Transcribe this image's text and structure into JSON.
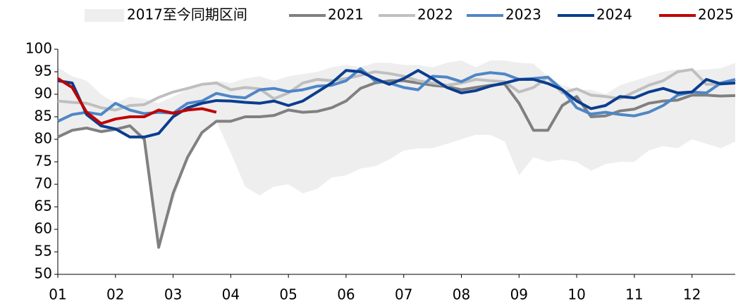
{
  "chart_data": {
    "type": "line",
    "categories": [
      "01",
      null,
      null,
      null,
      "02",
      null,
      null,
      null,
      "03",
      null,
      null,
      null,
      "04",
      null,
      null,
      null,
      "05",
      null,
      null,
      null,
      "06",
      null,
      null,
      null,
      "07",
      null,
      null,
      null,
      "08",
      null,
      null,
      null,
      "09",
      null,
      null,
      null,
      "10",
      null,
      null,
      null,
      "11",
      null,
      null,
      null,
      "12",
      null,
      null,
      null
    ],
    "band": {
      "name": "2017至今同期区间",
      "color": "#eeeeee",
      "high": [
        96,
        94,
        93,
        90,
        88,
        89.5,
        89,
        88,
        89.5,
        91,
        92,
        93,
        92.5,
        93.5,
        94,
        93,
        94,
        94.5,
        95,
        96,
        96.5,
        96,
        97,
        97,
        96.5,
        96.5,
        96,
        97,
        97.5,
        96,
        97.5,
        97.5,
        97,
        96.8,
        94,
        92,
        91,
        91,
        90,
        92,
        93,
        94,
        95,
        95.5,
        95.3,
        95.5,
        95.8,
        97
      ],
      "low": [
        80.5,
        82,
        82.5,
        81.7,
        82.2,
        80.5,
        80.5,
        56,
        66,
        76,
        81.5,
        84,
        77,
        69.5,
        67.5,
        69.5,
        70,
        68,
        69,
        71.5,
        72,
        73.5,
        74,
        75.5,
        77.5,
        78,
        78,
        79,
        80,
        81,
        81,
        79.5,
        72,
        76,
        75,
        75.5,
        75,
        73,
        74.5,
        75,
        75,
        77.5,
        78.5,
        78,
        80,
        79,
        78,
        79.5
      ]
    },
    "series": [
      {
        "name": "2021",
        "color": "#808080",
        "values": [
          80.5,
          82,
          82.5,
          81.7,
          82.2,
          83,
          80,
          56,
          68,
          76,
          81.5,
          84,
          84,
          85,
          85,
          85.3,
          86.5,
          86,
          86.2,
          87,
          88.5,
          91.3,
          92.5,
          93,
          93,
          92.5,
          92,
          91.7,
          91,
          91.5,
          92,
          92.3,
          88,
          82,
          82,
          87.5,
          89.5,
          85,
          85.2,
          86.3,
          86.7,
          88,
          88.5,
          88.7,
          89.8,
          89.8,
          89.6,
          89.7
        ]
      },
      {
        "name": "2022",
        "color": "#bfbfbf",
        "values": [
          88.5,
          88.2,
          88,
          87,
          86.5,
          87.5,
          87.7,
          89.3,
          90.5,
          91.3,
          92.2,
          92.5,
          91,
          91.5,
          91.2,
          89,
          90.3,
          92.5,
          93.3,
          93,
          93.5,
          94.2,
          95,
          94.6,
          94,
          93,
          92.5,
          92,
          92.5,
          93.3,
          93,
          92.8,
          90.5,
          91.5,
          93.8,
          90.3,
          91.2,
          89.8,
          89.5,
          89,
          90.5,
          92,
          93,
          95,
          95.5,
          92.2,
          92.3,
          93
        ]
      },
      {
        "name": "2023",
        "color": "#4f86c6",
        "values": [
          84,
          85.5,
          86,
          85.5,
          88,
          86.5,
          85.7,
          86,
          85.8,
          88,
          88.5,
          90.2,
          89.5,
          89.2,
          91,
          91.3,
          90.6,
          91,
          91.8,
          92,
          93,
          95.7,
          93,
          92.5,
          91.5,
          91,
          94,
          93.8,
          92.8,
          94.3,
          94.8,
          94.5,
          93.3,
          93.5,
          93.8,
          91,
          87,
          85.6,
          86,
          85.5,
          85.2,
          86,
          87.5,
          89.8,
          90.5,
          90.3,
          92.5,
          93.3
        ]
      },
      {
        "name": "2024",
        "color": "#0a3d8f",
        "values": [
          93,
          92.5,
          85.5,
          83,
          82.3,
          80.5,
          80.5,
          81.3,
          85,
          87,
          88,
          88.6,
          88.5,
          88.2,
          88,
          88.5,
          87.5,
          88.5,
          90.5,
          92.5,
          95.3,
          95,
          93.5,
          92.2,
          93.5,
          95.3,
          93.5,
          91.5,
          90.3,
          90.8,
          91.8,
          92.5,
          93.3,
          93.3,
          92.4,
          91,
          88.5,
          86.8,
          87.5,
          89.5,
          89.2,
          90.5,
          91.3,
          90.3,
          90.5,
          93.3,
          92.3,
          92.5
        ]
      },
      {
        "name": "2025",
        "color": "#c00000",
        "values": [
          93.5,
          91.5,
          86,
          83.5,
          84.5,
          85,
          85,
          86.5,
          85.8,
          86.5,
          86.8,
          86,
          null,
          null,
          null,
          null,
          null,
          null,
          null,
          null,
          null,
          null,
          null,
          null,
          null,
          null,
          null,
          null,
          null,
          null,
          null,
          null,
          null,
          null,
          null,
          null,
          null,
          null,
          null,
          null,
          null,
          null,
          null,
          null,
          null,
          null,
          null,
          null
        ]
      }
    ],
    "ylim": [
      50,
      100
    ],
    "yticks": [
      50,
      55,
      60,
      65,
      70,
      75,
      80,
      85,
      90,
      95,
      100
    ],
    "grid": false,
    "legend": "top"
  }
}
